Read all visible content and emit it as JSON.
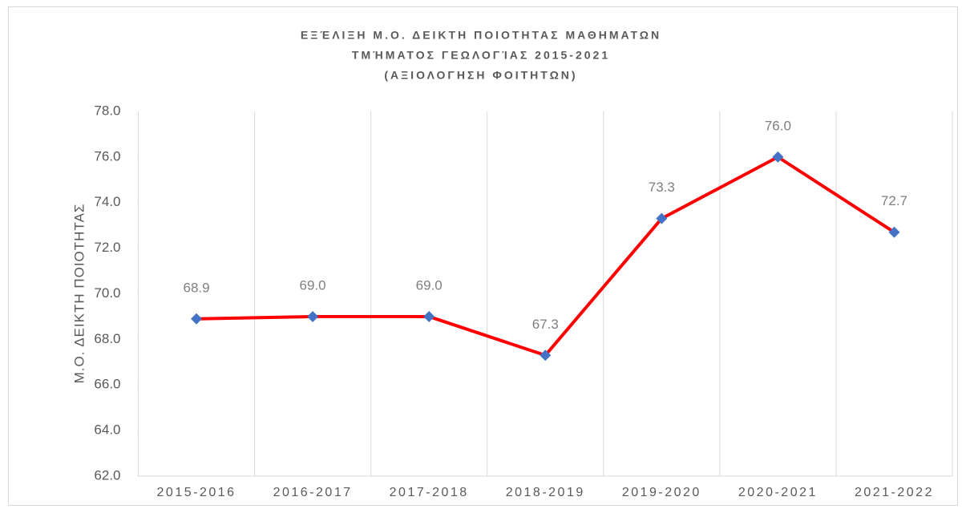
{
  "chart_data": {
    "type": "line",
    "title": [
      "ΕΞΈΛΙΞΗ Μ.Ο. ΔΕΙΚΤΗ ΠΟΙΟΤΗΤΑΣ ΜΑΘΗΜΑΤΩΝ",
      "ΤΜΉΜΑΤΟΣ ΓΕΩΛΟΓΊΑΣ 2015-2021",
      "(ΑΞΙΟΛΟΓΗΣΗ ΦΟΙΤΗΤΩΝ)"
    ],
    "y_label": "Μ.Ο.  ΔΕΙΚΤΗ   ΠΟΙΟΤΗΤΑΣ",
    "categories": [
      "2015-2016",
      "2016-2017",
      "2017-2018",
      "2018-2019",
      "2019-2020",
      "2020-2021",
      "2021-2022"
    ],
    "values": [
      68.9,
      69,
      69,
      67.3,
      73.3,
      76,
      72.7
    ],
    "value_labels": [
      "68.9",
      "69.0",
      "69.0",
      "67.3",
      "73.3",
      "76.0",
      "72.7"
    ],
    "color": "#ff0000",
    "marker_color": "#4472c4",
    "ylim": [
      62,
      78
    ],
    "yticks": [
      {
        "value": 62,
        "label": "62.0"
      },
      {
        "value": 64,
        "label": "64.0"
      },
      {
        "value": 66,
        "label": "66.0"
      },
      {
        "value": 68,
        "label": "68.0"
      },
      {
        "value": 70,
        "label": "70.0"
      },
      {
        "value": 72,
        "label": "72.0"
      },
      {
        "value": 74,
        "label": "74.0"
      },
      {
        "value": 76,
        "label": "76.0"
      },
      {
        "value": 78,
        "label": "78.0"
      }
    ],
    "grid": "x"
  }
}
